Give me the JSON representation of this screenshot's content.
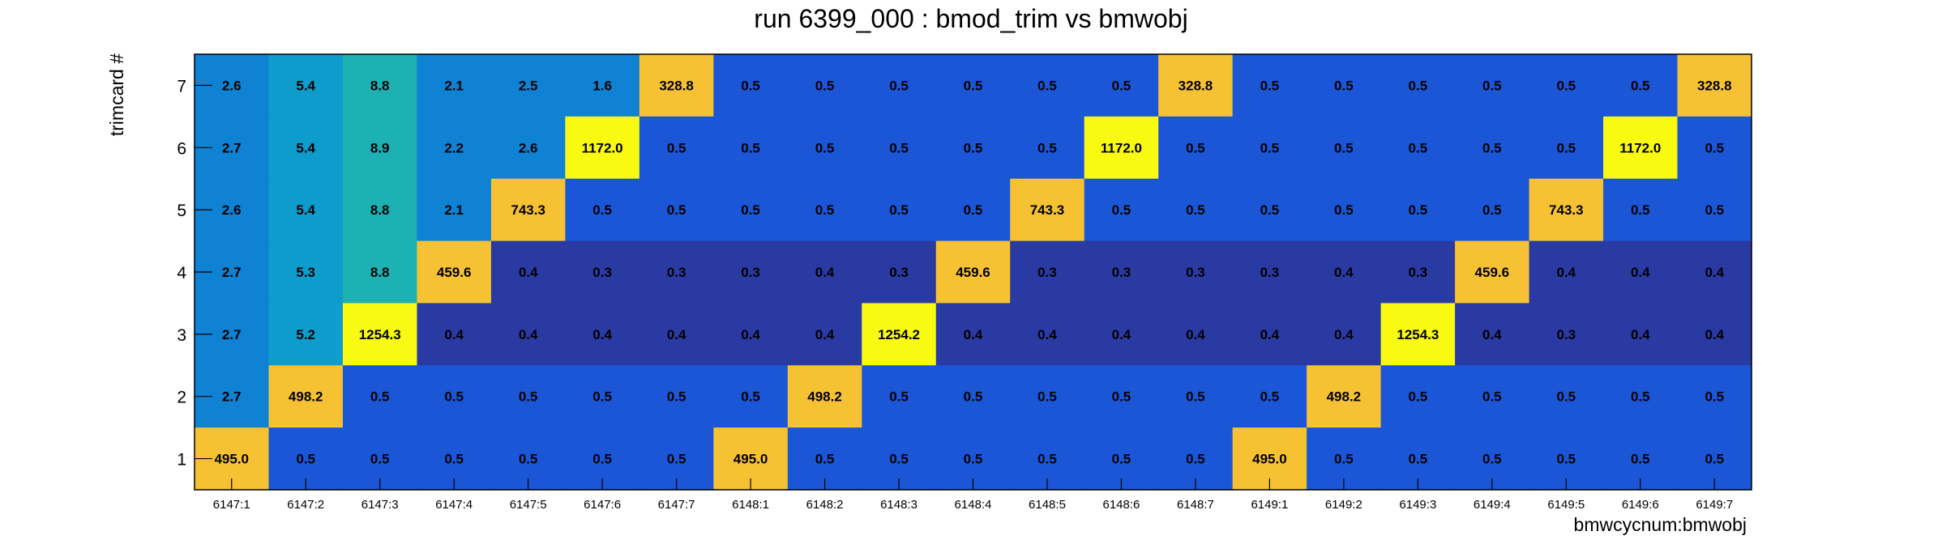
{
  "chart_data": {
    "type": "heatmap",
    "title": "run 6399_000 : bmod_trim vs bmwobj",
    "xlabel": "bmwcycnum:bmwobj",
    "ylabel": "trimcard #",
    "x_categories": [
      "6147:1",
      "6147:2",
      "6147:3",
      "6147:4",
      "6147:5",
      "6147:6",
      "6147:7",
      "6148:1",
      "6148:2",
      "6148:3",
      "6148:4",
      "6148:5",
      "6148:6",
      "6148:7",
      "6149:1",
      "6149:2",
      "6149:3",
      "6149:4",
      "6149:5",
      "6149:6",
      "6149:7"
    ],
    "y_categories": [
      "1",
      "2",
      "3",
      "4",
      "5",
      "6",
      "7"
    ],
    "rows": [
      {
        "y": "7",
        "values": [
          "2.6",
          "5.4",
          "8.8",
          "2.1",
          "2.5",
          "1.6",
          "328.8",
          "0.5",
          "0.5",
          "0.5",
          "0.5",
          "0.5",
          "0.5",
          "328.8",
          "0.5",
          "0.5",
          "0.5",
          "0.5",
          "0.5",
          "0.5",
          "328.8"
        ]
      },
      {
        "y": "6",
        "values": [
          "2.7",
          "5.4",
          "8.9",
          "2.2",
          "2.6",
          "1172.0",
          "0.5",
          "0.5",
          "0.5",
          "0.5",
          "0.5",
          "0.5",
          "1172.0",
          "0.5",
          "0.5",
          "0.5",
          "0.5",
          "0.5",
          "0.5",
          "1172.0",
          "0.5"
        ]
      },
      {
        "y": "5",
        "values": [
          "2.6",
          "5.4",
          "8.8",
          "2.1",
          "743.3",
          "0.5",
          "0.5",
          "0.5",
          "0.5",
          "0.5",
          "0.5",
          "743.3",
          "0.5",
          "0.5",
          "0.5",
          "0.5",
          "0.5",
          "0.5",
          "743.3",
          "0.5",
          "0.5"
        ]
      },
      {
        "y": "4",
        "values": [
          "2.7",
          "5.3",
          "8.8",
          "459.6",
          "0.4",
          "0.3",
          "0.3",
          "0.3",
          "0.4",
          "0.3",
          "459.6",
          "0.3",
          "0.3",
          "0.3",
          "0.3",
          "0.4",
          "0.3",
          "459.6",
          "0.4",
          "0.4",
          "0.4"
        ]
      },
      {
        "y": "3",
        "values": [
          "2.7",
          "5.2",
          "1254.3",
          "0.4",
          "0.4",
          "0.4",
          "0.4",
          "0.4",
          "0.4",
          "1254.2",
          "0.4",
          "0.4",
          "0.4",
          "0.4",
          "0.4",
          "0.4",
          "1254.3",
          "0.4",
          "0.3",
          "0.4",
          "0.4"
        ]
      },
      {
        "y": "2",
        "values": [
          "2.7",
          "498.2",
          "0.5",
          "0.5",
          "0.5",
          "0.5",
          "0.5",
          "0.5",
          "498.2",
          "0.5",
          "0.5",
          "0.5",
          "0.5",
          "0.5",
          "0.5",
          "498.2",
          "0.5",
          "0.5",
          "0.5",
          "0.5",
          "0.5"
        ]
      },
      {
        "y": "1",
        "values": [
          "495.0",
          "0.5",
          "0.5",
          "0.5",
          "0.5",
          "0.5",
          "0.5",
          "495.0",
          "0.5",
          "0.5",
          "0.5",
          "0.5",
          "0.5",
          "0.5",
          "495.0",
          "0.5",
          "0.5",
          "0.5",
          "0.5",
          "0.5",
          "0.5"
        ]
      }
    ],
    "color_scale": "parula",
    "colors": {
      "very_low": "#2a3aa3",
      "low": "#1b56d6",
      "low_mid": "#0f82d4",
      "mid": "#0e9ccc",
      "mid_high": "#1db1b4",
      "high": "#f6c233",
      "max": "#f8fa12"
    }
  }
}
